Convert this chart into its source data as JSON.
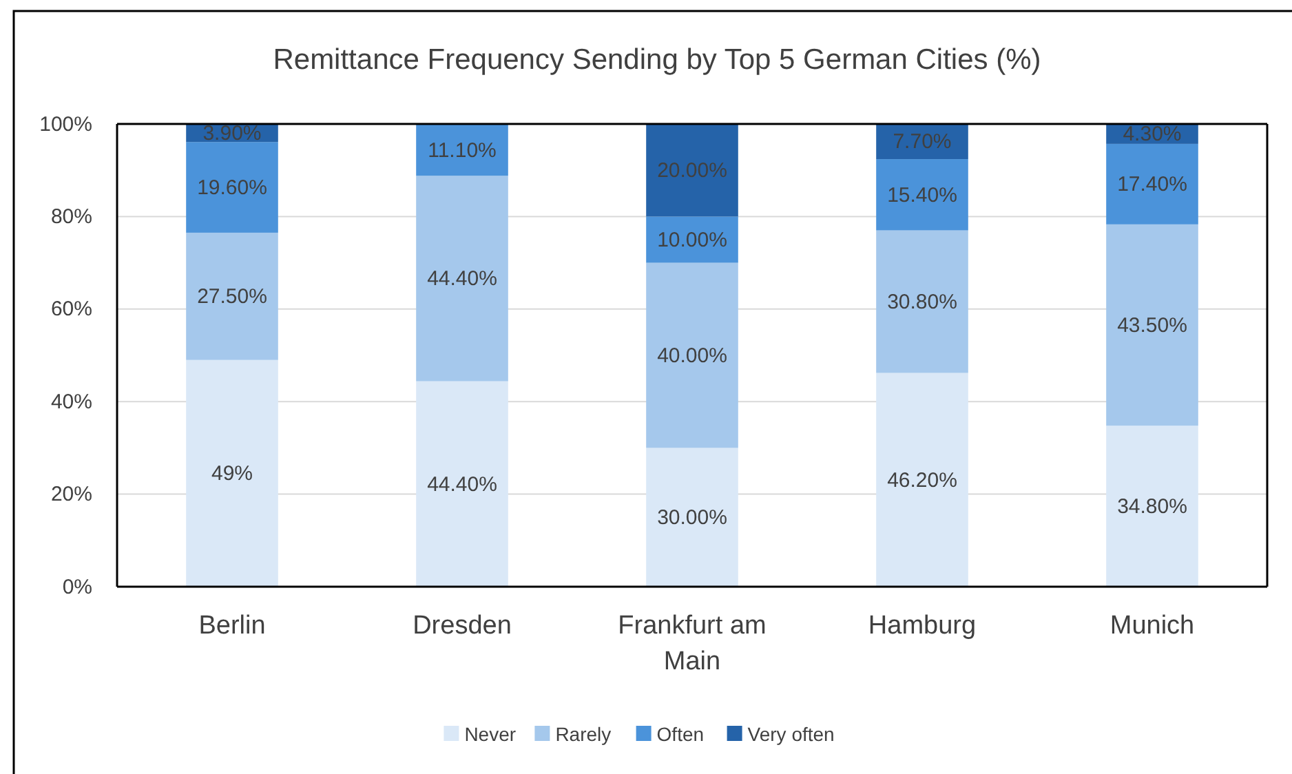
{
  "chart_data": {
    "type": "bar",
    "title": "Remittance Frequency Sending by Top 5 German Cities (%)",
    "stacked": true,
    "categories": [
      "Berlin",
      "Dresden",
      "Frankfurt am Main",
      "Hamburg",
      "Munich"
    ],
    "series": [
      {
        "name": "Never",
        "color": "#dae8f7",
        "values": [
          49,
          44.4,
          30,
          46.2,
          34.8
        ],
        "value_labels": [
          "49%",
          "44.40%",
          "30.00%",
          "46.20%",
          "34.80%"
        ]
      },
      {
        "name": "Rarely",
        "color": "#a5c8ec",
        "values": [
          27.5,
          44.4,
          40,
          30.8,
          43.5
        ],
        "value_labels": [
          "27.50%",
          "44.40%",
          "40.00%",
          "30.80%",
          "43.50%"
        ]
      },
      {
        "name": "Often",
        "color": "#4b93da",
        "values": [
          19.6,
          11.1,
          10,
          15.4,
          17.4
        ],
        "value_labels": [
          "19.60%",
          "11.10%",
          "10.00%",
          "15.40%",
          "17.40%"
        ]
      },
      {
        "name": "Very often",
        "color": "#2563a9",
        "values": [
          3.9,
          null,
          20,
          7.7,
          4.3
        ],
        "value_labels": [
          "3.90%",
          null,
          "20.00%",
          "7.70%",
          "4.30%"
        ]
      }
    ],
    "ylim": [
      0,
      100
    ],
    "yticks": [
      {
        "value": 0,
        "label": "0%"
      },
      {
        "value": 20,
        "label": "20%"
      },
      {
        "value": 40,
        "label": "40%"
      },
      {
        "value": 60,
        "label": "60%"
      },
      {
        "value": 80,
        "label": "80%"
      },
      {
        "value": 100,
        "label": "100%"
      }
    ],
    "grid": "y",
    "legend": "bottom"
  }
}
